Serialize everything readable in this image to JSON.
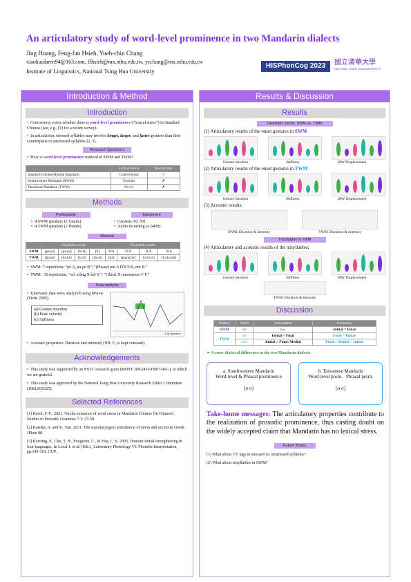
{
  "header": {
    "title": "An articulatory study of word-level prominence in two Mandarin dialects",
    "authors": "Jing Huang, Feng-fan Hsieh, Yueh-chin Chang",
    "emails": "xiaokuidaren94@163.com, ffhsieh@mx.nthu.edu.tw, ycchang@mx.nthu.edu.tw",
    "institution": "Institute of Linguistics, National Tsing Hua University",
    "logo_conf": "HISPhonCog 2023",
    "logo_univ": "國立清華大學",
    "logo_univ_en": "NATIONAL TSING HUA UNIVERSITY"
  },
  "left": {
    "band": "Introduction & Method",
    "intro_title": "Introduction",
    "intro_b1_a": "Controversy exists whether there is ",
    "intro_b1_em": "word-level prominence",
    "intro_b1_b": " (“lexical stress”) in Standard Chinese (see, e.g., [1] for a recent survey).",
    "intro_b2_a": "In articulation: stressed syllables may involve ",
    "intro_b2_b": "longer, larger",
    "intro_b2_c": ", and ",
    "intro_b2_d": "faster",
    "intro_b2_e": " gestures than their counterparts in unstressed syllables [2, 3].",
    "rq_tag": "Research Questions",
    "rq_a": "How is ",
    "rq_em": "word-level prominence",
    "rq_b": " realized in SWM and TWM?",
    "lex_table": {
      "headers": [
        "",
        "Lexical Stress",
        "Neutral tone"
      ],
      "rows": [
        [
          "Standard Chinese/Beijing Mandarin",
          "Controversial",
          "✓"
        ],
        [
          "Southwestern Mandarin (SWM)",
          "Trochaic",
          "✗"
        ],
        [
          "Taiwanese Mandarin (TWM)",
          "No (?)",
          "✗"
        ]
      ]
    },
    "methods_title": "Methods",
    "participants_tag": "Participants",
    "equipment_tag": "Equipment",
    "participants": [
      "4 SWM speakers (2 female)",
      "4 TWM speakers (2 female)"
    ],
    "equipment": [
      "Carstens AG 501",
      "Audio recording at 24kHz"
    ],
    "material_tag": "Material",
    "mat_table": {
      "group_headers": [
        "",
        "Disyllabic words",
        "Trisyllabic words"
      ],
      "rows": [
        [
          "SWM",
          "[pa.pa]",
          "[pa.pa]",
          "[ta.ta]",
          "[tt]",
          "N/A",
          "N/A",
          "N/A",
          "N/A"
        ],
        [
          "TWM",
          "[pa.pa]",
          "[ka.ka]",
          "[ta.ti]",
          "[tja.ta]",
          "[tja]",
          "[pa.pa.pa]",
          "[ta.ta.ta]",
          "[ka.ka.ka]"
        ]
      ]
    },
    "mat_b1": "SWM: 7 repetitions; “pé A, pu pé B”; “(Please) put A FOCUS, not B.”",
    "mat_b2": "TWM : 10 repetitions, “wǒ xiǎng X bèi Y”; “I think X memorizes Y F.”",
    "analysis_tag": "Data analysis",
    "analysis_b1": "Kinematic data were analyzed using Mview (Tiede 2005).",
    "analysis_list": [
      "(a) Gesture duration",
      "(b) Peak velocity",
      "(c) Stiffness"
    ],
    "analysis_plot_label": "Lip Aperture",
    "analysis_b2": "Acoustic properties: Duration and intensity (NB: F₀ is kept constant).",
    "ack_title": "Acknowledgements",
    "ack_b1": "This study was supported by an NSTC research grant (MOST 109-2410-H007-061-), to which we are grateful.",
    "ack_b2": "This study was approved by the National Tsing Hua University Research Ethics Committee (10812HS125).",
    "refs_title": "Selected References",
    "refs": [
      "[1] Hsieh, F.-F.. 2021. On the existence of word stress in Mandarin Chinese [In Chinese]. Studies in Prosodic Grammar 7.1: 27-58.",
      "[2] Katsika, A. and K. Tsai. 2021. The supralaryngeal articulation of stress and accent in Greek. JPhon 88.",
      "[3] Kersting, P., Cho, T. H., Fougeron, C., & Hsu, C. S. 2003. Domain-initial strengthening in four languages. In Local J. et al. (Eds.), Laboratory Phonology VI: Phonetic Interpretation, pp.145-163. CUP."
    ]
  },
  "right": {
    "band": "Results & Discussion",
    "results_title": "Results",
    "disyl_tag": "Disyllabic words: SWM vs. TWM",
    "r1_a": "(1) Articulatory results of the onset gestures in ",
    "r1_b": "SWM",
    "r2_a": "(2) Articulatory results of the onset gestures in ",
    "r2_b": "TWM",
    "caps": [
      "Gesture duration",
      "Stiffness",
      "JAW Displacement"
    ],
    "r3": "(3) Acoustic results:",
    "ac_caps": [
      "SWM: Duration & intensity",
      "TWM: Duration & intensity"
    ],
    "trisyl_tag": "Trisyllables in TWM",
    "r4": "(4)   Articulatory and acoustic results of the trisyllables:",
    "tri_caps": [
      "Gesture duration",
      "Stiffness",
      "JAW Displacement"
    ],
    "tri_ac_cap": "TWM: Duration & intensity",
    "disc_title": "Discussion",
    "disc_table": {
      "headers": [
        "Dialect",
        "Word",
        "Articulation",
        "Acoustics"
      ],
      "rows": [
        [
          "SWM",
          "σσ",
          "n.s.",
          "Initial > Final"
        ],
        [
          "TWM",
          "σσ",
          "Initial > Final",
          "Final > Initial"
        ],
        [
          "",
          "σσσ",
          "Initial > Final, Medial",
          "Final > Medial > Initial"
        ]
      ]
    },
    "cross": "A cross-dialectal difference in the two Mandarin dialects",
    "box_a_title": "a. Southwestern Mandarin",
    "box_a_sub": "Word-level & Phrasal prominence",
    "box_a_sig": "[σ    σ]",
    "box_b_title": "b. Taiwanese Mandarin",
    "box_b_sub1": "Word-level prom.",
    "box_b_sub2": "Phrasal prom.",
    "box_b_sig": "[σ    σ]",
    "take_label": "Take-home messages:",
    "take_text": " The articulatory properties contribute to the realization of prosodic prominence, thus casting doubt on the widely accepted claim that Mandarin has no lexical stress.",
    "future_tag": "Future Works",
    "future": [
      "(1) What about CV lags in stressed vs. unstressed syllables?",
      "(2) What about trisyllables in SWM?"
    ]
  },
  "colors": {
    "accent": "#7c2fd6",
    "band": "#a86ce6",
    "teal": "#1fb5a0",
    "pink": "#e0508c",
    "green": "#3cb04a"
  }
}
